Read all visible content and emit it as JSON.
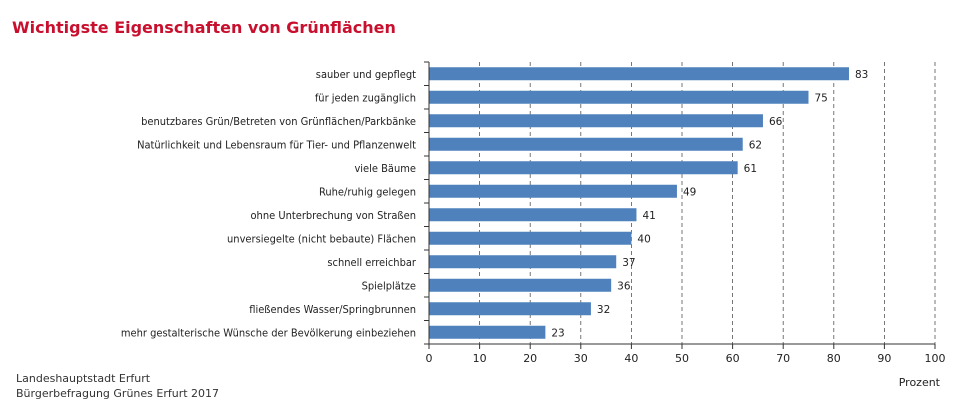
{
  "chart_data": {
    "type": "bar",
    "orientation": "horizontal",
    "title": "Wichtigste Eigenschaften von Grünflächen",
    "xlabel": "Prozent",
    "xlim": [
      0,
      100
    ],
    "ticks": [
      0,
      10,
      20,
      30,
      40,
      50,
      60,
      70,
      80,
      90,
      100
    ],
    "grid": "vertical dashed",
    "bar_color": "#4f81bd",
    "categories": [
      "sauber und gepflegt",
      "für jeden zugänglich",
      "benutzbares Grün/Betreten von Grünflächen/Parkbänke",
      "Natürlichkeit und Lebensraum für Tier- und Pflanzenwelt",
      "viele Bäume",
      "Ruhe/ruhig gelegen",
      "ohne Unterbrechung von Straßen",
      "unversiegelte (nicht bebaute) Flächen",
      "schnell erreichbar",
      "Spielplätze",
      "fließendes Wasser/Springbrunnen",
      "mehr gestalterische Wünsche der Bevölkerung einbeziehen"
    ],
    "values": [
      83,
      75,
      66,
      62,
      61,
      49,
      41,
      40,
      37,
      36,
      32,
      23
    ]
  },
  "source": {
    "line1": "Landeshauptstadt Erfurt",
    "line2": "Bürgerbefragung Grünes Erfurt 2017"
  }
}
